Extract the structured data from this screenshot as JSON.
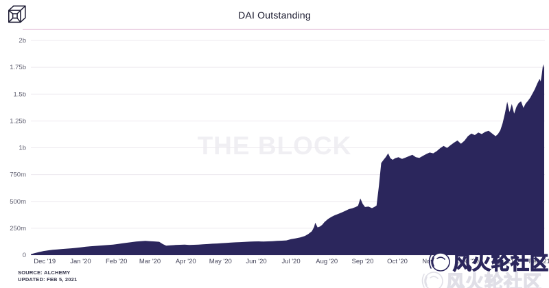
{
  "colors": {
    "title_text": "#15152a",
    "divider": "#d9a7cb",
    "gridline": "#edeaef",
    "y_label": "#5f5f70",
    "x_label": "#45455a",
    "source_text": "#35354a",
    "watermark_center": "#f0eff3",
    "wm_stroke": "#2b265c",
    "logo_stroke": "#1c1b33"
  },
  "header": {
    "title": "DAI Outstanding",
    "logo": "the-block-cube-logo"
  },
  "footer": {
    "source_line1": "SOURCE: ALCHEMY",
    "source_line2": "UPDATED: FEB 5, 2021"
  },
  "watermarks": {
    "center_text": "THE BLOCK",
    "community_text": "风火轮社区"
  },
  "chart_data": {
    "type": "area",
    "title": "DAI Outstanding",
    "grid": true,
    "legend": "none",
    "area_color": "#2b265c",
    "x_domain": [
      "2019-11-19",
      "2021-02-05"
    ],
    "y_axis_max_m": 2000,
    "y_ticks": [
      {
        "label": "2b",
        "value_m": 2000
      },
      {
        "label": "1.75b",
        "value_m": 1750
      },
      {
        "label": "1.5b",
        "value_m": 1500
      },
      {
        "label": "1.25b",
        "value_m": 1250
      },
      {
        "label": "1b",
        "value_m": 1000
      },
      {
        "label": "750m",
        "value_m": 750
      },
      {
        "label": "500m",
        "value_m": 500
      },
      {
        "label": "250m",
        "value_m": 250
      },
      {
        "label": "0",
        "value_m": 0
      }
    ],
    "x_ticks": [
      {
        "label": "Dec '19",
        "date": "2019-12-01"
      },
      {
        "label": "Jan '20",
        "date": "2020-01-01"
      },
      {
        "label": "Feb '20",
        "date": "2020-02-01"
      },
      {
        "label": "Mar '20",
        "date": "2020-03-01"
      },
      {
        "label": "Apr '20",
        "date": "2020-04-01"
      },
      {
        "label": "May '20",
        "date": "2020-05-01"
      },
      {
        "label": "Jun '20",
        "date": "2020-06-01"
      },
      {
        "label": "Jul '20",
        "date": "2020-07-01"
      },
      {
        "label": "Aug '20",
        "date": "2020-08-01"
      },
      {
        "label": "Sep '20",
        "date": "2020-09-01"
      },
      {
        "label": "Oct '20",
        "date": "2020-10-01"
      },
      {
        "label": "Nov '20",
        "date": "2020-11-01"
      },
      {
        "label": "Dec '20",
        "date": "2020-12-01"
      },
      {
        "label": "Jan '21",
        "date": "2021-01-01"
      },
      {
        "label": "Feb '21",
        "date": "2021-02-01"
      }
    ],
    "series": [
      {
        "name": "DAI Outstanding",
        "unit": "DAI (millions)",
        "points": [
          [
            "2019-11-19",
            8
          ],
          [
            "2019-11-22",
            18
          ],
          [
            "2019-11-26",
            28
          ],
          [
            "2019-11-30",
            38
          ],
          [
            "2019-12-04",
            44
          ],
          [
            "2019-12-08",
            49
          ],
          [
            "2019-12-12",
            53
          ],
          [
            "2019-12-16",
            57
          ],
          [
            "2019-12-20",
            60
          ],
          [
            "2019-12-24",
            63
          ],
          [
            "2019-12-28",
            67
          ],
          [
            "2020-01-01",
            72
          ],
          [
            "2020-01-05",
            77
          ],
          [
            "2020-01-09",
            81
          ],
          [
            "2020-01-13",
            85
          ],
          [
            "2020-01-17",
            88
          ],
          [
            "2020-01-21",
            91
          ],
          [
            "2020-01-25",
            94
          ],
          [
            "2020-01-29",
            98
          ],
          [
            "2020-02-02",
            103
          ],
          [
            "2020-02-06",
            109
          ],
          [
            "2020-02-10",
            115
          ],
          [
            "2020-02-14",
            121
          ],
          [
            "2020-02-18",
            126
          ],
          [
            "2020-02-22",
            130
          ],
          [
            "2020-02-26",
            132
          ],
          [
            "2020-03-01",
            130
          ],
          [
            "2020-03-05",
            127
          ],
          [
            "2020-03-09",
            124
          ],
          [
            "2020-03-12",
            103
          ],
          [
            "2020-03-15",
            88
          ],
          [
            "2020-03-19",
            91
          ],
          [
            "2020-03-23",
            94
          ],
          [
            "2020-03-27",
            96
          ],
          [
            "2020-03-31",
            97
          ],
          [
            "2020-04-04",
            94
          ],
          [
            "2020-04-08",
            96
          ],
          [
            "2020-04-12",
            98
          ],
          [
            "2020-04-16",
            101
          ],
          [
            "2020-04-20",
            103
          ],
          [
            "2020-04-24",
            106
          ],
          [
            "2020-04-28",
            108
          ],
          [
            "2020-05-02",
            111
          ],
          [
            "2020-05-06",
            114
          ],
          [
            "2020-05-10",
            117
          ],
          [
            "2020-05-14",
            119
          ],
          [
            "2020-05-18",
            121
          ],
          [
            "2020-05-22",
            123
          ],
          [
            "2020-05-26",
            125
          ],
          [
            "2020-05-30",
            127
          ],
          [
            "2020-06-03",
            128
          ],
          [
            "2020-06-07",
            126
          ],
          [
            "2020-06-11",
            128
          ],
          [
            "2020-06-15",
            130
          ],
          [
            "2020-06-19",
            132
          ],
          [
            "2020-06-23",
            134
          ],
          [
            "2020-06-27",
            137
          ],
          [
            "2020-07-01",
            148
          ],
          [
            "2020-07-05",
            156
          ],
          [
            "2020-07-09",
            164
          ],
          [
            "2020-07-13",
            178
          ],
          [
            "2020-07-16",
            196
          ],
          [
            "2020-07-19",
            222
          ],
          [
            "2020-07-21",
            262
          ],
          [
            "2020-07-22",
            302
          ],
          [
            "2020-07-24",
            258
          ],
          [
            "2020-07-26",
            266
          ],
          [
            "2020-07-28",
            282
          ],
          [
            "2020-07-30",
            308
          ],
          [
            "2020-08-02",
            336
          ],
          [
            "2020-08-05",
            356
          ],
          [
            "2020-08-08",
            372
          ],
          [
            "2020-08-11",
            384
          ],
          [
            "2020-08-14",
            398
          ],
          [
            "2020-08-17",
            412
          ],
          [
            "2020-08-20",
            428
          ],
          [
            "2020-08-23",
            436
          ],
          [
            "2020-08-26",
            448
          ],
          [
            "2020-08-28",
            460
          ],
          [
            "2020-08-30",
            528
          ],
          [
            "2020-09-01",
            478
          ],
          [
            "2020-09-03",
            448
          ],
          [
            "2020-09-06",
            452
          ],
          [
            "2020-09-09",
            438
          ],
          [
            "2020-09-11",
            448
          ],
          [
            "2020-09-13",
            462
          ],
          [
            "2020-09-15",
            642
          ],
          [
            "2020-09-17",
            858
          ],
          [
            "2020-09-19",
            886
          ],
          [
            "2020-09-21",
            914
          ],
          [
            "2020-09-23",
            948
          ],
          [
            "2020-09-25",
            902
          ],
          [
            "2020-09-27",
            888
          ],
          [
            "2020-09-29",
            902
          ],
          [
            "2020-10-02",
            912
          ],
          [
            "2020-10-05",
            896
          ],
          [
            "2020-10-08",
            908
          ],
          [
            "2020-10-11",
            922
          ],
          [
            "2020-10-14",
            934
          ],
          [
            "2020-10-17",
            912
          ],
          [
            "2020-10-20",
            906
          ],
          [
            "2020-10-23",
            924
          ],
          [
            "2020-10-26",
            942
          ],
          [
            "2020-10-29",
            956
          ],
          [
            "2020-11-01",
            948
          ],
          [
            "2020-11-04",
            968
          ],
          [
            "2020-11-07",
            996
          ],
          [
            "2020-11-10",
            1018
          ],
          [
            "2020-11-13",
            998
          ],
          [
            "2020-11-16",
            1024
          ],
          [
            "2020-11-19",
            1048
          ],
          [
            "2020-11-22",
            1068
          ],
          [
            "2020-11-25",
            1038
          ],
          [
            "2020-11-28",
            1066
          ],
          [
            "2020-12-01",
            1108
          ],
          [
            "2020-12-04",
            1132
          ],
          [
            "2020-12-07",
            1118
          ],
          [
            "2020-12-10",
            1142
          ],
          [
            "2020-12-13",
            1128
          ],
          [
            "2020-12-16",
            1148
          ],
          [
            "2020-12-19",
            1158
          ],
          [
            "2020-12-22",
            1132
          ],
          [
            "2020-12-25",
            1108
          ],
          [
            "2020-12-27",
            1128
          ],
          [
            "2020-12-29",
            1162
          ],
          [
            "2020-12-31",
            1228
          ],
          [
            "2021-01-02",
            1318
          ],
          [
            "2021-01-04",
            1428
          ],
          [
            "2021-01-06",
            1332
          ],
          [
            "2021-01-08",
            1408
          ],
          [
            "2021-01-10",
            1318
          ],
          [
            "2021-01-12",
            1382
          ],
          [
            "2021-01-14",
            1418
          ],
          [
            "2021-01-16",
            1432
          ],
          [
            "2021-01-18",
            1372
          ],
          [
            "2021-01-20",
            1412
          ],
          [
            "2021-01-22",
            1438
          ],
          [
            "2021-01-24",
            1468
          ],
          [
            "2021-01-26",
            1508
          ],
          [
            "2021-01-28",
            1548
          ],
          [
            "2021-01-30",
            1598
          ],
          [
            "2021-02-01",
            1642
          ],
          [
            "2021-02-02",
            1618
          ],
          [
            "2021-02-03",
            1688
          ],
          [
            "2021-02-04",
            1778
          ],
          [
            "2021-02-05",
            1742
          ]
        ]
      }
    ]
  }
}
